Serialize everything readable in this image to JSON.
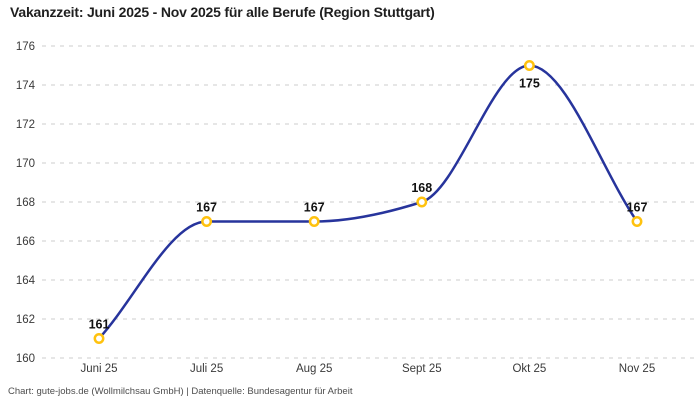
{
  "chart_data": {
    "type": "line",
    "title": "Vakanzzeit: Juni 2025 - Nov 2025 für alle Berufe (Region Stuttgart)",
    "attribution": "Chart: gute-jobs.de (Wollmilchsau GmbH) | Datenquelle: Bundesagentur für Arbeit",
    "categories": [
      "Juni 25",
      "Juli 25",
      "Aug 25",
      "Sept 25",
      "Okt 25",
      "Nov 25"
    ],
    "values": [
      161,
      167,
      167,
      168,
      175,
      167
    ],
    "data_labels": [
      "161",
      "167",
      "167",
      "168",
      "175",
      "167"
    ],
    "label_position": [
      "above",
      "above",
      "above",
      "above",
      "below",
      "above"
    ],
    "ylim": [
      160,
      176
    ],
    "yticks": [
      160,
      162,
      164,
      166,
      168,
      170,
      172,
      174,
      176
    ],
    "xlabel": "",
    "ylabel": "",
    "grid": "horizontal-dashed",
    "legend": "none",
    "curve": "monotone",
    "colors": {
      "line": "#27349C",
      "marker_stroke": "#FFC20E",
      "marker_fill": "#ffffff",
      "grid": "#cdcdcd",
      "data_label": "#111111",
      "axis_text": "#3a3a3a",
      "title": "#1f1f1f",
      "attribution": "#4d4d4d",
      "background": "#ffffff"
    }
  }
}
